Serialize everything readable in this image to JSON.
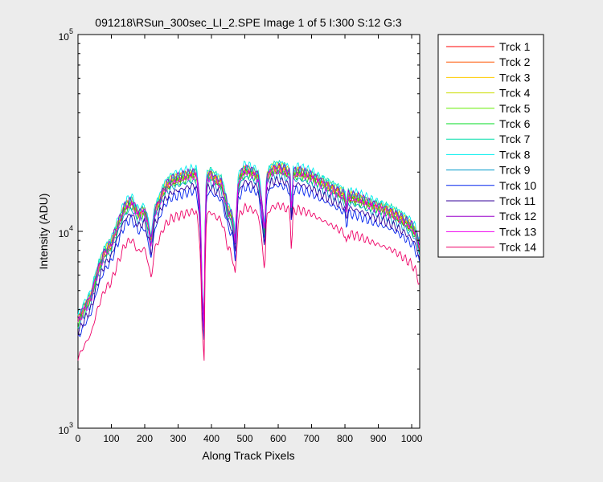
{
  "chart_data": {
    "type": "line",
    "title": "091218\\RSun_300sec_LI_2.SPE  Image 1 of 5  I:300  S:12  G:3",
    "xlabel": "Along Track Pixels",
    "ylabel": "Intensity (ADU)",
    "xlim": [
      0,
      1024
    ],
    "ylim": [
      1000,
      100000
    ],
    "yscale": "log",
    "x_ticks": [
      "0",
      "100",
      "200",
      "300",
      "400",
      "500",
      "600",
      "700",
      "800",
      "900",
      "1000"
    ],
    "y_ticks": [
      {
        "base": "10",
        "exp": "3",
        "value": 1000
      },
      {
        "base": "10",
        "exp": "4",
        "value": 10000
      },
      {
        "base": "10",
        "exp": "5",
        "value": 100000
      }
    ],
    "grid": false,
    "legend_position": "outside-right",
    "shape_x": [
      0,
      20,
      40,
      60,
      80,
      100,
      120,
      140,
      160,
      180,
      200,
      220,
      230,
      240,
      260,
      280,
      300,
      320,
      340,
      355,
      365,
      372,
      378,
      385,
      395,
      410,
      430,
      450,
      462,
      472,
      480,
      490,
      500,
      520,
      540,
      555,
      560,
      565,
      580,
      600,
      620,
      635,
      640,
      645,
      660,
      680,
      700,
      720,
      740,
      760,
      780,
      800,
      805,
      810,
      820,
      840,
      860,
      880,
      900,
      920,
      940,
      960,
      980,
      1000,
      1010,
      1024
    ],
    "shape_y": [
      3600,
      4200,
      4800,
      6500,
      8000,
      8800,
      11000,
      13500,
      14500,
      12500,
      13000,
      9000,
      13000,
      14000,
      17000,
      18500,
      19000,
      19500,
      20000,
      20000,
      14000,
      5000,
      3500,
      19000,
      20000,
      19000,
      18000,
      13000,
      12000,
      9000,
      18000,
      20000,
      21000,
      20500,
      19500,
      12000,
      9500,
      19000,
      21000,
      21500,
      21000,
      20000,
      12000,
      20000,
      20500,
      20000,
      19500,
      18500,
      17800,
      17000,
      16300,
      15500,
      13000,
      15500,
      15300,
      15000,
      14500,
      14000,
      13600,
      13200,
      12800,
      12200,
      11500,
      10800,
      10200,
      8500
    ],
    "series": [
      {
        "name": "Trck 1",
        "color": "#ff0000",
        "scale": 0.97
      },
      {
        "name": "Trck 2",
        "color": "#ff5500",
        "scale": 0.99
      },
      {
        "name": "Trck 3",
        "color": "#ffcc00",
        "scale": 1.0
      },
      {
        "name": "Trck 4",
        "color": "#ccdd00",
        "scale": 0.98
      },
      {
        "name": "Trck 5",
        "color": "#66ee00",
        "scale": 0.96
      },
      {
        "name": "Trck 6",
        "color": "#00dd22",
        "scale": 0.94
      },
      {
        "name": "Trck 7",
        "color": "#00ddaa",
        "scale": 1.02
      },
      {
        "name": "Trck 8",
        "color": "#00eeee",
        "scale": 1.04
      },
      {
        "name": "Trck 9",
        "color": "#0099cc",
        "scale": 0.9
      },
      {
        "name": "Trck 10",
        "color": "#0022ee",
        "scale": 0.8
      },
      {
        "name": "Trck 11",
        "color": "#330099",
        "scale": 0.85
      },
      {
        "name": "Trck 12",
        "color": "#9900cc",
        "scale": 1.0
      },
      {
        "name": "Trck 13",
        "color": "#ee00ee",
        "scale": 0.95
      },
      {
        "name": "Trck 14",
        "color": "#ee0066",
        "scale": 0.63
      }
    ]
  }
}
